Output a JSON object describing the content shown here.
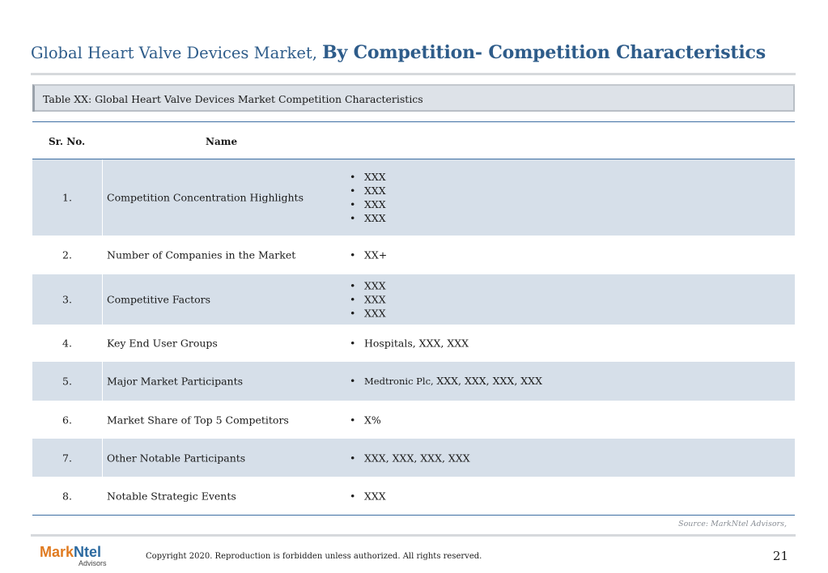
{
  "title": {
    "prefix": "Global Heart Valve Devices Market, ",
    "emphasis": "By Competition- Competition Characteristics"
  },
  "caption": "Table XX: Global Heart Valve Devices Market Competition Characteristics",
  "table": {
    "headers": {
      "sr_no": "Sr. No.",
      "name": "Name"
    },
    "rows": [
      {
        "no": "1.",
        "name": "Competition Concentration Highlights",
        "values": [
          "XXX",
          "XXX",
          "XXX",
          "XXX"
        ]
      },
      {
        "no": "2.",
        "name": "Number of Companies in the Market",
        "values": [
          "XX+"
        ]
      },
      {
        "no": "3.",
        "name": "Competitive Factors",
        "values": [
          "XXX",
          "XXX",
          "XXX"
        ]
      },
      {
        "no": "4.",
        "name": "Key End User Groups",
        "values": [
          "Hospitals, XXX, XXX"
        ]
      },
      {
        "no": "5.",
        "name": "Major Market Participants",
        "values_mixed": {
          "small": "Medtronic Plc, ",
          "rest": "XXX, XXX, XXX, XXX"
        }
      },
      {
        "no": "6.",
        "name": "Market Share of Top 5 Competitors",
        "values": [
          "X%"
        ]
      },
      {
        "no": "7.",
        "name": "Other Notable Participants",
        "values": [
          "XXX, XXX, XXX, XXX"
        ]
      },
      {
        "no": "8.",
        "name": "Notable Strategic Events",
        "values": [
          "XXX"
        ]
      }
    ]
  },
  "source": "Source: MarkNtel Advisors,",
  "footer": {
    "logo_part1": "Mark",
    "logo_part2": "Ntel",
    "logo_sub": "Advisors",
    "copyright": "Copyright 2020. Reproduction is forbidden unless authorized. All rights reserved.",
    "page_number": "21"
  },
  "colors": {
    "title": "#2e5c8a",
    "row_shade": "#d6dfe9",
    "rule_blue": "#3e6fa3",
    "logo_orange": "#e07b21",
    "logo_blue": "#2c6aa0"
  }
}
